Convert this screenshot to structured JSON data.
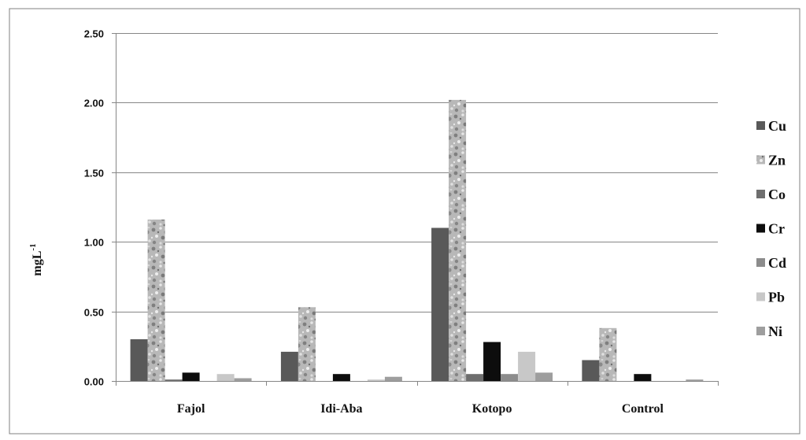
{
  "chart_data": {
    "type": "bar",
    "title": "",
    "xlabel": "",
    "ylabel": "mgL",
    "ylabel_superscript": "-1",
    "ylim": [
      0,
      2.5
    ],
    "yticks": [
      "0.00",
      "0.50",
      "1.00",
      "1.50",
      "2.00",
      "2.50"
    ],
    "ytick_values": [
      0,
      0.5,
      1.0,
      1.5,
      2.0,
      2.5
    ],
    "categories": [
      "Fajol",
      "Idi-Aba",
      "Kotopo",
      "Control"
    ],
    "grid": true,
    "legend_position": "right",
    "series": [
      {
        "name": "Cu",
        "color": "#595959",
        "pattern": "solid",
        "values": [
          0.3,
          0.21,
          1.1,
          0.15
        ]
      },
      {
        "name": "Zn",
        "color": "#b8b8b8",
        "pattern": "granite",
        "values": [
          1.16,
          0.53,
          2.02,
          0.38
        ]
      },
      {
        "name": "Co",
        "color": "#6e6e6e",
        "pattern": "solid",
        "values": [
          0.01,
          0.0,
          0.05,
          0.0
        ]
      },
      {
        "name": "Cr",
        "color": "#0d0d0d",
        "pattern": "solid",
        "values": [
          0.06,
          0.05,
          0.28,
          0.05
        ]
      },
      {
        "name": "Cd",
        "color": "#8c8c8c",
        "pattern": "solid",
        "values": [
          0.0,
          0.0,
          0.05,
          0.0
        ]
      },
      {
        "name": "Pb",
        "color": "#c8c8c8",
        "pattern": "solid",
        "values": [
          0.05,
          0.01,
          0.21,
          0.0
        ]
      },
      {
        "name": "Ni",
        "color": "#9e9e9e",
        "pattern": "solid",
        "values": [
          0.02,
          0.03,
          0.06,
          0.01
        ]
      }
    ]
  }
}
